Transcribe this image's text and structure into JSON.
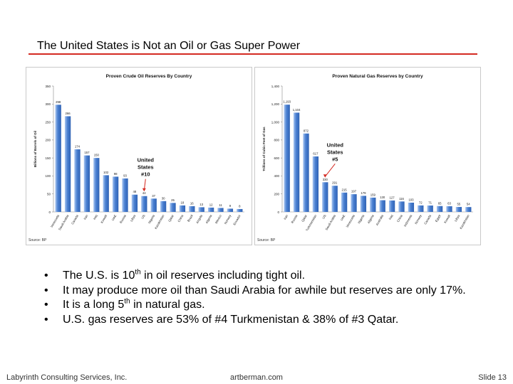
{
  "slide": {
    "title": "The United States is Not an Oil or Gas Super Power",
    "footer_left": "Labyrinth Consulting Services, Inc.",
    "footer_center": "artberman.com",
    "footer_right": "Slide 13",
    "bullets": [
      {
        "text_before": "The U.S. is 10",
        "sup": "th",
        "text_after": " in oil reserves including tight oil."
      },
      {
        "text_before": "It may produce more oil than Saudi Arabia for awhile but reserves are only 17%.",
        "sup": "",
        "text_after": ""
      },
      {
        "text_before": "It is a long 5",
        "sup": "th",
        "text_after": " in natural gas."
      },
      {
        "text_before": "U.S. gas reserves are 53% of #4 Turkmenistan & 38% of #3 Qatar.",
        "sup": "",
        "text_after": ""
      }
    ],
    "bullet_glyph": "•",
    "accent_color": "#d42a22",
    "bar_color": "#4a80d2"
  },
  "chart_data": [
    {
      "type": "bar",
      "title": "Proven Crude Oil Reserves By Country",
      "xlabel": "",
      "ylabel": "Billions of Barrels of Oil",
      "ylim": [
        0,
        350
      ],
      "yticks": [
        "0",
        "50",
        "100",
        "150",
        "200",
        "250",
        "300",
        "350"
      ],
      "ytick_values": [
        0,
        50,
        100,
        150,
        200,
        250,
        300,
        350
      ],
      "categories": [
        "Venezuela",
        "Saudi Arabia",
        "Canada",
        "Iran",
        "Iraq",
        "Kuwait",
        "UAE",
        "Russia",
        "Libya",
        "US",
        "Nigeria",
        "Kazakhstan",
        "Qatar",
        "China",
        "Brazil",
        "Angola",
        "Algeria",
        "Mexico",
        "Norway",
        "Ecuador"
      ],
      "values": [
        298,
        266,
        174,
        157,
        150,
        102,
        98,
        93,
        48,
        44,
        37,
        30,
        25,
        18,
        16,
        13,
        12,
        11,
        9,
        8
      ],
      "data_labels": [
        "298",
        "266",
        "174",
        "157",
        "150",
        "102",
        "98",
        "93",
        "48",
        "44",
        "37",
        "30",
        "25",
        "18",
        "16",
        "13",
        "12",
        "11",
        "9",
        "8"
      ],
      "annotation": {
        "lines": [
          "United",
          "States",
          "#10"
        ],
        "target_index": 9
      },
      "source": "Source:  BP",
      "grid": false,
      "legend": "none"
    },
    {
      "type": "bar",
      "title": "Proven Natural Gas Reserves by Country",
      "xlabel": "",
      "ylabel": "Trillions of Cubic Feet of Gas",
      "ylim": [
        0,
        1400
      ],
      "yticks": [
        "0",
        "200",
        "400",
        "600",
        "800",
        "1,000",
        "1,200",
        "1,400"
      ],
      "ytick_values": [
        0,
        200,
        400,
        600,
        800,
        1000,
        1200,
        1400
      ],
      "categories": [
        "Iran",
        "Russia",
        "Qatar",
        "Turkmenistan",
        "US",
        "Saudi Arabia",
        "UAE",
        "Venezuela",
        "Nigeria",
        "Algeria",
        "Australia",
        "Iraq",
        "China",
        "Indonesia",
        "Norway",
        "Canada",
        "Egypt",
        "Kuwait",
        "Libya",
        "Kazakhstan"
      ],
      "values": [
        1193,
        1104,
        872,
        617,
        330,
        291,
        215,
        197,
        179,
        159,
        130,
        127,
        116,
        103,
        72,
        71,
        65,
        63,
        55,
        54
      ],
      "data_labels": [
        "1,193",
        "1,104",
        "872",
        "617",
        "330",
        "291",
        "215",
        "197",
        "179",
        "159",
        "130",
        "127",
        "116",
        "103",
        "72",
        "71",
        "65",
        "63",
        "55",
        "54"
      ],
      "annotation": {
        "lines": [
          "United",
          "States",
          "#5"
        ],
        "target_index": 4
      },
      "source": "Source:  BP",
      "grid": false,
      "legend": "none"
    }
  ]
}
